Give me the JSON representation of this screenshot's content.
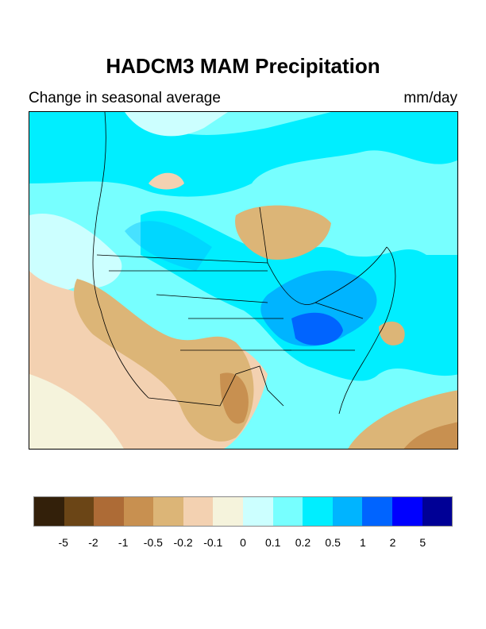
{
  "title": "HADCM3 MAM Precipitation",
  "subtitle_left": "Change in seasonal average",
  "subtitle_right": "mm/day",
  "colorbar": {
    "colors": [
      "#33200a",
      "#6b4516",
      "#ad6b36",
      "#c89050",
      "#dcb577",
      "#f3d1b1",
      "#f5f3dc",
      "#ccffff",
      "#77ffff",
      "#00eeff",
      "#00b4ff",
      "#0064ff",
      "#0000ff",
      "#000096"
    ],
    "labels": [
      "-5",
      "-2",
      "-1",
      "-0.5",
      "-0.2",
      "-0.1",
      "0",
      "0.1",
      "0.2",
      "0.5",
      "1",
      "2",
      "5"
    ]
  }
}
